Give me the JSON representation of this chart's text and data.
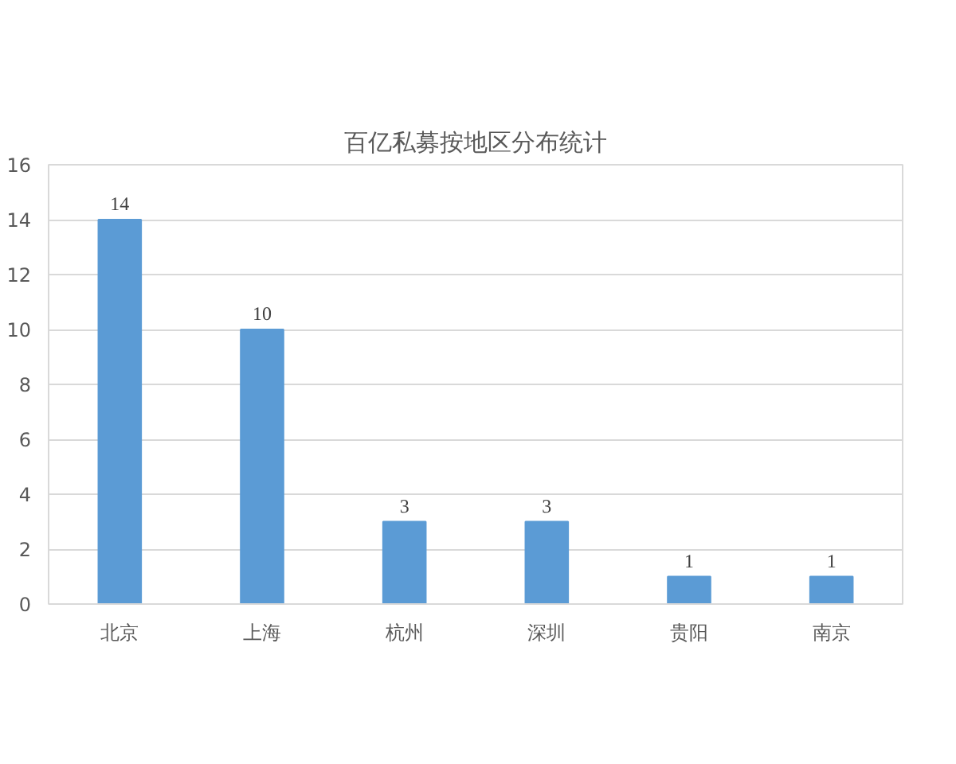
{
  "chart_data": {
    "type": "bar",
    "title": "百亿私募按地区分布统计",
    "categories": [
      "北京",
      "上海",
      "杭州",
      "深圳",
      "贵阳",
      "南京"
    ],
    "values": [
      14,
      10,
      3,
      3,
      1,
      1
    ],
    "color": "#5b9bd5",
    "ylim": [
      0,
      16
    ],
    "yticks": [
      0,
      2,
      4,
      6,
      8,
      10,
      12,
      14,
      16
    ],
    "grid": "y",
    "data_labels": true
  }
}
